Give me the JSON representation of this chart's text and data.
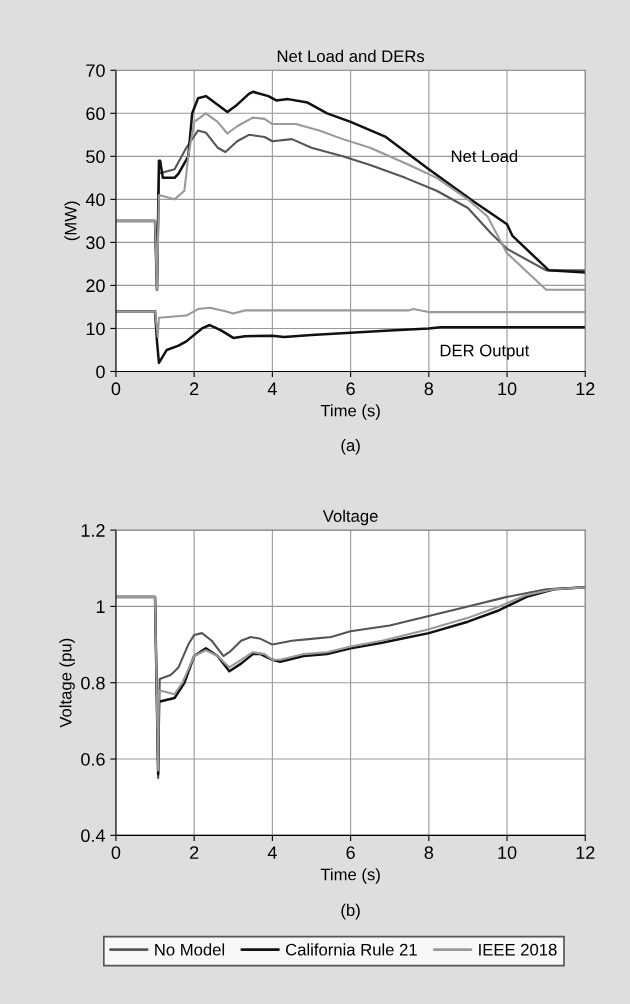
{
  "chart_data": [
    {
      "type": "line",
      "title": "Net Load and DERs",
      "xlabel": "Time (s)",
      "ylabel": "(MW)",
      "xlim": [
        0,
        12
      ],
      "xticks": [
        0,
        2,
        4,
        6,
        8,
        10,
        12
      ],
      "ylim": [
        0,
        70
      ],
      "yticks": [
        0,
        10,
        20,
        30,
        40,
        50,
        60,
        70
      ],
      "grid": true,
      "line_style": "solid",
      "annotations": [
        "Net Load",
        "DER Output",
        "(a)"
      ],
      "legend": "bottom",
      "series": [
        {
          "name": "No Model",
          "color": "#555555",
          "x": [
            0,
            1.0,
            1.05,
            1.1,
            1.5,
            1.8,
            2.1,
            2.3,
            2.6,
            2.8,
            3.1,
            3.4,
            3.8,
            4.0,
            4.5,
            5.0,
            5.8,
            6.5,
            7.4,
            8.2,
            9.0,
            9.6,
            10.0,
            11.0,
            12
          ],
          "values": [
            35,
            35,
            19,
            46,
            47,
            52,
            56,
            55.5,
            52,
            51,
            53.5,
            55,
            54.5,
            53.5,
            54,
            52,
            50,
            48,
            45,
            42,
            38,
            32,
            28.5,
            23.5,
            23.5
          ]
        },
        {
          "name": "California Rule 21",
          "color": "#111111",
          "x": [
            0,
            1.0,
            1.05,
            1.1,
            1.13,
            1.2,
            1.5,
            1.6,
            1.85,
            1.95,
            2.1,
            2.3,
            2.6,
            2.85,
            3.1,
            3.4,
            3.5,
            3.9,
            4.1,
            4.4,
            4.9,
            5.4,
            6.0,
            6.9,
            8.0,
            9.1,
            10.0,
            10.14,
            11.07,
            12
          ],
          "values": [
            35,
            35,
            19,
            49,
            49,
            45,
            45,
            46,
            50,
            60,
            63.5,
            64,
            62,
            60.3,
            62,
            64.5,
            65,
            64,
            63,
            63.3,
            62.5,
            60,
            58,
            54.5,
            47,
            39.8,
            34.2,
            31.5,
            23.5,
            23
          ]
        },
        {
          "name": "IEEE 2018",
          "color": "#999999",
          "x": [
            0,
            1.0,
            1.05,
            1.1,
            1.5,
            1.75,
            1.85,
            2.0,
            2.3,
            2.6,
            2.85,
            3.1,
            3.5,
            3.8,
            4.0,
            4.6,
            5.2,
            5.8,
            6.5,
            7.5,
            8.2,
            9.0,
            9.5,
            10.0,
            11.0,
            12
          ],
          "values": [
            35,
            35,
            19,
            41,
            40,
            42,
            50,
            58,
            60,
            58,
            55.3,
            57,
            59,
            58.7,
            57.5,
            57.5,
            56,
            54,
            52,
            48,
            45,
            40,
            36,
            27.5,
            19,
            19
          ]
        },
        {
          "color": "#111111",
          "x": [
            0,
            1.0,
            1.05,
            1.1,
            1.3,
            1.6,
            1.8,
            2.2,
            2.4,
            2.7,
            3.0,
            3.3,
            4.0,
            4.3,
            5.0,
            6.0,
            7.0,
            8.0,
            8.3,
            12
          ],
          "values": [
            14,
            14,
            7,
            2,
            5,
            6,
            7,
            10,
            10.8,
            9.5,
            7.8,
            8.2,
            8.3,
            8,
            8.5,
            9,
            9.5,
            10,
            10.3,
            10.3
          ]
        },
        {
          "color": "#999999",
          "x": [
            0,
            1.0,
            1.07,
            1.1,
            1.8,
            2.1,
            2.4,
            2.8,
            3.0,
            3.3,
            7.5,
            7.6,
            8.0,
            12
          ],
          "values": [
            14,
            14,
            8,
            12.5,
            13,
            14.5,
            14.8,
            14,
            13.5,
            14.2,
            14.2,
            14.5,
            13.8,
            13.8
          ]
        }
      ]
    },
    {
      "type": "line",
      "title": "Voltage",
      "xlabel": "Time (s)",
      "ylabel": "Voltage (pu)",
      "xlim": [
        0,
        12
      ],
      "xticks": [
        0,
        2,
        4,
        6,
        8,
        10,
        12
      ],
      "ylim": [
        0.4,
        1.2
      ],
      "yticks": [
        0.4,
        0.6,
        0.8,
        1,
        1.2
      ],
      "grid": true,
      "line_style": "solid",
      "annotations": [
        "(b)"
      ],
      "series": [
        {
          "color": "#555555",
          "x": [
            0,
            1.0,
            1.08,
            1.12,
            1.4,
            1.6,
            1.85,
            2.0,
            2.2,
            2.45,
            2.75,
            2.9,
            3.2,
            3.45,
            3.7,
            4.0,
            4.5,
            5.0,
            5.5,
            6.0,
            7.0,
            8.0,
            9.0,
            10.0,
            11.0,
            12
          ],
          "values": [
            1.025,
            1.025,
            0.55,
            0.81,
            0.82,
            0.84,
            0.9,
            0.925,
            0.93,
            0.91,
            0.87,
            0.88,
            0.91,
            0.92,
            0.915,
            0.9,
            0.91,
            0.915,
            0.92,
            0.935,
            0.95,
            0.975,
            1.0,
            1.025,
            1.045,
            1.05
          ]
        },
        {
          "color": "#111111",
          "x": [
            0,
            1.0,
            1.08,
            1.1,
            1.5,
            1.75,
            2.0,
            2.3,
            2.6,
            2.9,
            3.2,
            3.5,
            3.7,
            4.0,
            4.2,
            4.8,
            5.4,
            6.0,
            6.8,
            8.0,
            9.0,
            9.8,
            10.5,
            11.2,
            12
          ],
          "values": [
            1.025,
            1.025,
            0.56,
            0.75,
            0.76,
            0.8,
            0.87,
            0.89,
            0.87,
            0.83,
            0.85,
            0.875,
            0.875,
            0.86,
            0.855,
            0.87,
            0.875,
            0.89,
            0.905,
            0.93,
            0.96,
            0.99,
            1.025,
            1.045,
            1.05
          ]
        },
        {
          "color": "#999999",
          "x": [
            0,
            1.0,
            1.08,
            1.1,
            1.5,
            1.7,
            2.0,
            2.3,
            2.6,
            2.9,
            3.2,
            3.5,
            3.8,
            4.0,
            4.2,
            4.8,
            5.4,
            6.0,
            6.8,
            8.0,
            9.0,
            9.8,
            10.5,
            11.2,
            12
          ],
          "values": [
            1.025,
            1.025,
            0.57,
            0.78,
            0.77,
            0.8,
            0.87,
            0.885,
            0.87,
            0.84,
            0.86,
            0.88,
            0.875,
            0.86,
            0.86,
            0.875,
            0.88,
            0.895,
            0.91,
            0.94,
            0.97,
            1.0,
            1.03,
            1.045,
            1.05
          ]
        }
      ]
    }
  ]
}
